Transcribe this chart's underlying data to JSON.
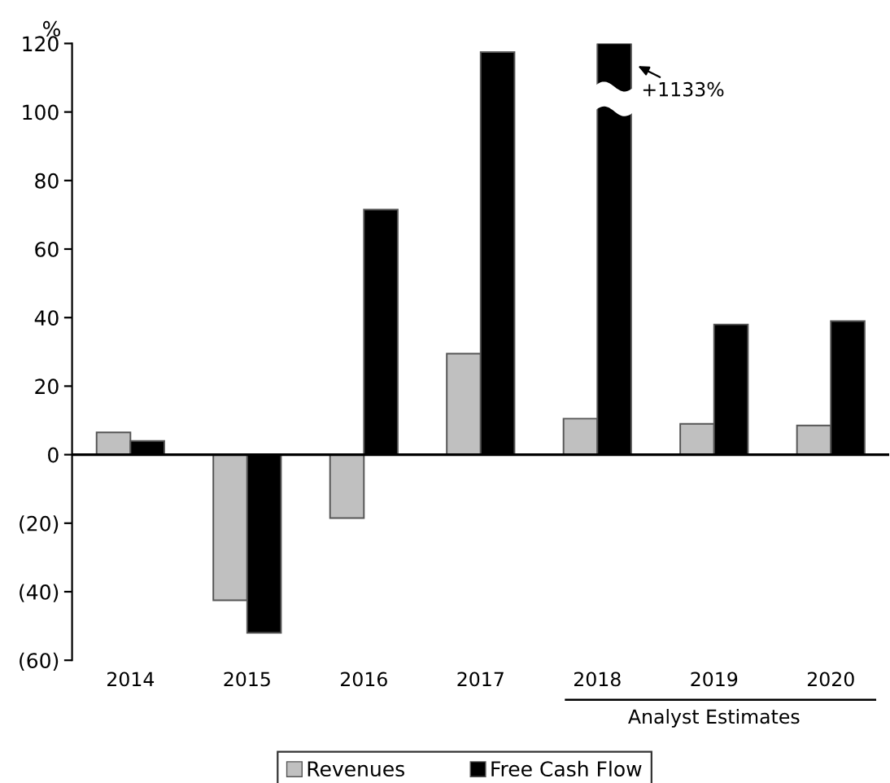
{
  "chart_data": {
    "type": "bar",
    "ylabel": "%",
    "categories": [
      "2014",
      "2015",
      "2016",
      "2017",
      "2018",
      "2019",
      "2020"
    ],
    "series": [
      {
        "name": "Revenues",
        "color": "#c0c0c0",
        "values": [
          6.5,
          -42.5,
          -18.5,
          29.5,
          10.5,
          9,
          8.5
        ]
      },
      {
        "name": "Free Cash Flow",
        "color": "#000000",
        "values": [
          4,
          -52,
          71.5,
          117.5,
          120,
          38,
          39
        ]
      }
    ],
    "ylim": [
      -60,
      120
    ],
    "yticks": [
      {
        "value": -60,
        "label": "(60)"
      },
      {
        "value": -40,
        "label": "(40)"
      },
      {
        "value": -20,
        "label": "(20)"
      },
      0,
      20,
      40,
      60,
      80,
      100,
      120
    ],
    "ref_lines": [
      {
        "axis": "y",
        "value": 0,
        "color": "#000000",
        "line_style": "solid"
      }
    ],
    "annotations": [
      "+1133%",
      "Analyst Estimates"
    ],
    "legend": "bottom",
    "grid": false
  }
}
